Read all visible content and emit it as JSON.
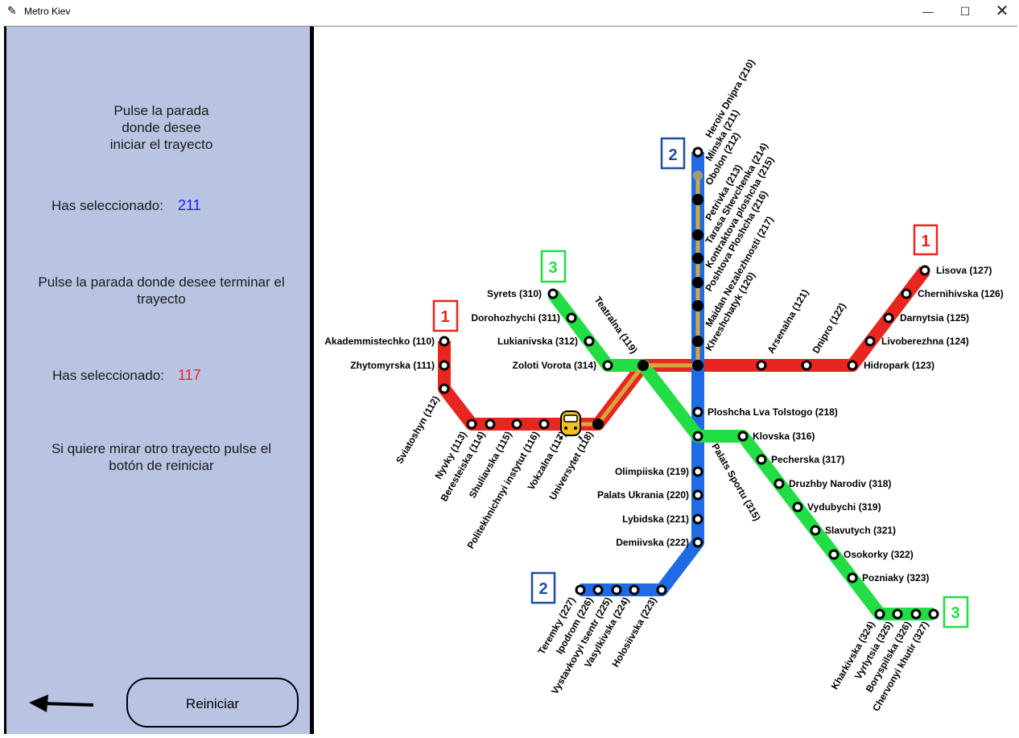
{
  "window": {
    "title": "Metro Kiev",
    "min": "—",
    "max": "☐",
    "close": "✕"
  },
  "panel": {
    "prompt_start": "Pulse la parada donde desee iniciar el trayecto",
    "selected_label": "Has seleccionado:",
    "selected_start": "211",
    "prompt_end": "Pulse la parada donde desee terminar el trayecto",
    "selected_end": "117",
    "hint": "Si quiere mirar otro trayecto pulse el botón de reiniciar",
    "reset_label": "Reiniciar"
  },
  "colors": {
    "line1": "#e8261f",
    "line2": "#1f6be3",
    "line3": "#22dd44",
    "route": "#d4a640",
    "panel": "#b9c4e3",
    "start_value": "#1a1aff",
    "end_value": "#ff1a1a"
  },
  "badges": {
    "l1": "1",
    "l2": "2",
    "l3": "3"
  },
  "stations": {
    "s110": "Akademmistechko (110)",
    "s111": "Zhytomyrska (111)",
    "s112": "Sviatoshyn (112)",
    "s113": "Nyvky (113)",
    "s114": "Beresteiska (114)",
    "s115": "Shuliavska (115)",
    "s116": "Politekhnichnyi instytut (116)",
    "s117": "Vokzalna (117)",
    "s118": "Universytet (118)",
    "s119": "Teatralna (119)",
    "s120": "Khreshchatyk (120)",
    "s121": "Arsenalna (121)",
    "s122": "Dnipro (122)",
    "s123": "Hidropark (123)",
    "s124": "Livoberezhna (124)",
    "s125": "Darnytsia (125)",
    "s126": "Chernihivska  (126)",
    "s127": "Lisova (127)",
    "s210": "Heroiv Dnipra (210)",
    "s211": "Minska (211)",
    "s212": "Obolon (212)",
    "s213": "Petrivka (213)",
    "s214": "Tarasa Shevchenka (214)",
    "s215": "Kontraktova ploshcha (215)",
    "s216": "Poshtova Ploshcha (216)",
    "s217": "Maidan Nezalezhnosti (217)",
    "s218": "Ploshcha Lva Tolstogo (218)",
    "s219": "Olimpiiska (219)",
    "s220": "Palats Ukrania (220)",
    "s221": "Lybidska (221)",
    "s222": "Demiivska (222)",
    "s223": "Holosiivska (223)",
    "s224": "Vasylkivska (224)",
    "s225": "Vystavkovyi tsentr (225)",
    "s226": "Ipodrom (226)",
    "s227": "Teremky (227)",
    "s310": "Syrets (310)",
    "s311": "Dorohozhychi (311)",
    "s312": "Lukianivska (312)",
    "s314": "Zoloti Vorota (314)",
    "s315": "Palats Sportu (315)",
    "s316": "Klovska (316)",
    "s317": "Pecherska (317)",
    "s318": "Druzhby Narodiv (318)",
    "s319": "Vydubychi (319)",
    "s321": "Slavutych (321)",
    "s322": "Osokorky (322)",
    "s323": "Pozniaky (323)",
    "s324": "Kharkivska (324)",
    "s325": "Vyrlytsia (325)",
    "s326": "Boryspilska (326)",
    "s327": "Chervonyi khutir (327)"
  }
}
